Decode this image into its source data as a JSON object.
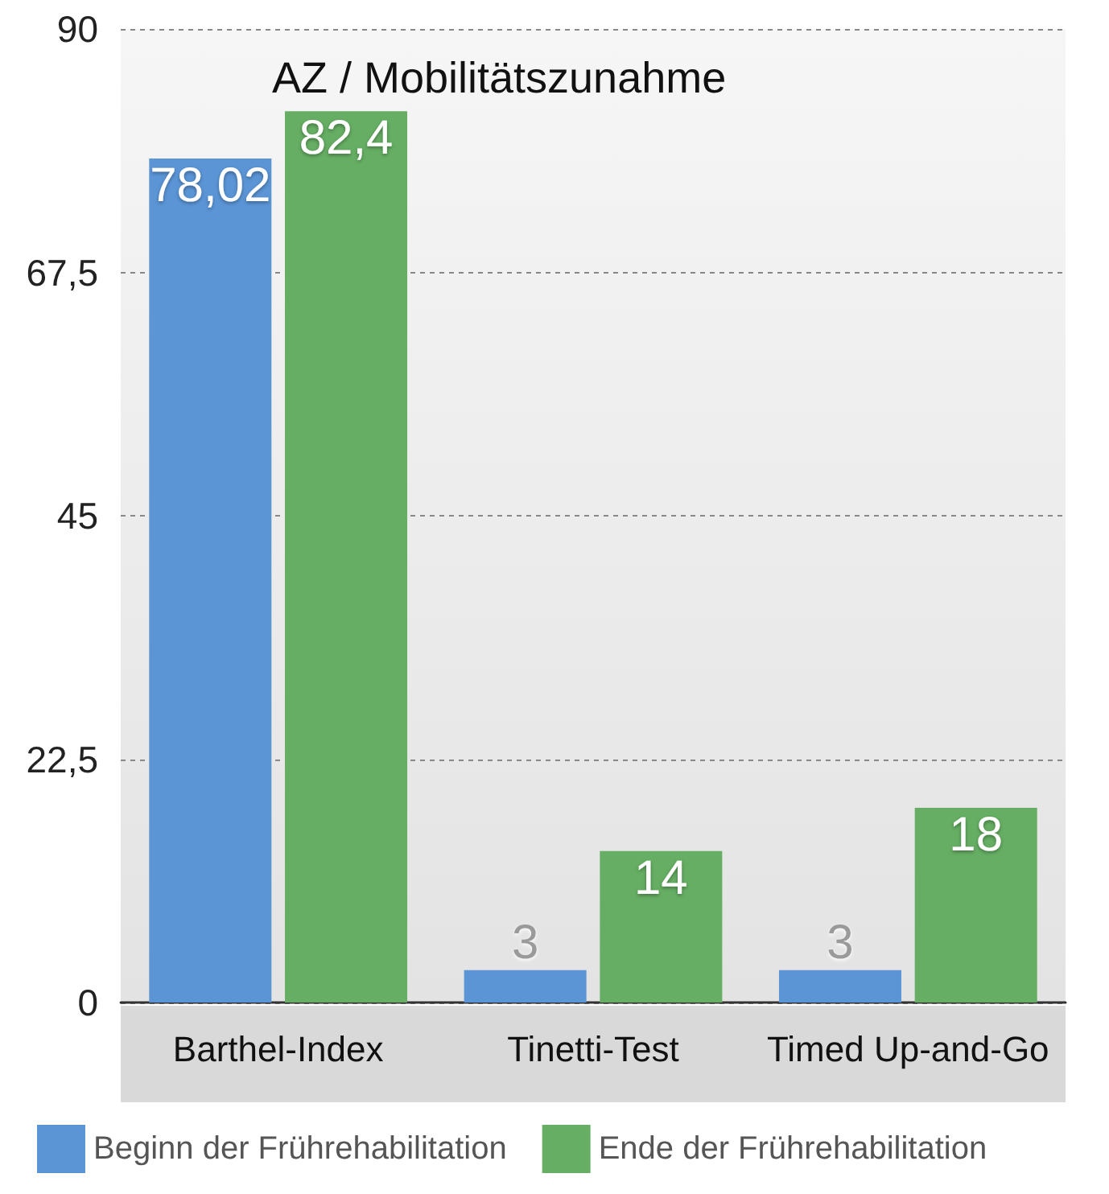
{
  "chart_data": {
    "type": "bar",
    "title": "AZ / Mobilitätszunahme",
    "categories": [
      "Barthel-Index",
      "Tinetti-Test",
      "Timed Up-and-Go"
    ],
    "series": [
      {
        "name": "Beginn der Frührehabilitation",
        "color": "#5b95d6",
        "values": [
          78.02,
          3,
          3
        ],
        "value_labels": [
          "78,02",
          "3",
          "3"
        ]
      },
      {
        "name": "Ende der Frührehabilitation",
        "color": "#66ae64",
        "values": [
          82.4,
          14,
          18
        ],
        "value_labels": [
          "82,4",
          "14",
          "18"
        ]
      }
    ],
    "ylim": [
      0,
      90
    ],
    "yticks": [
      0,
      {
        "value": 22.5,
        "label": "22,5"
      },
      45,
      {
        "value": 67.5,
        "label": "67,5"
      },
      90
    ],
    "grid": "y",
    "legend": "bottom"
  }
}
